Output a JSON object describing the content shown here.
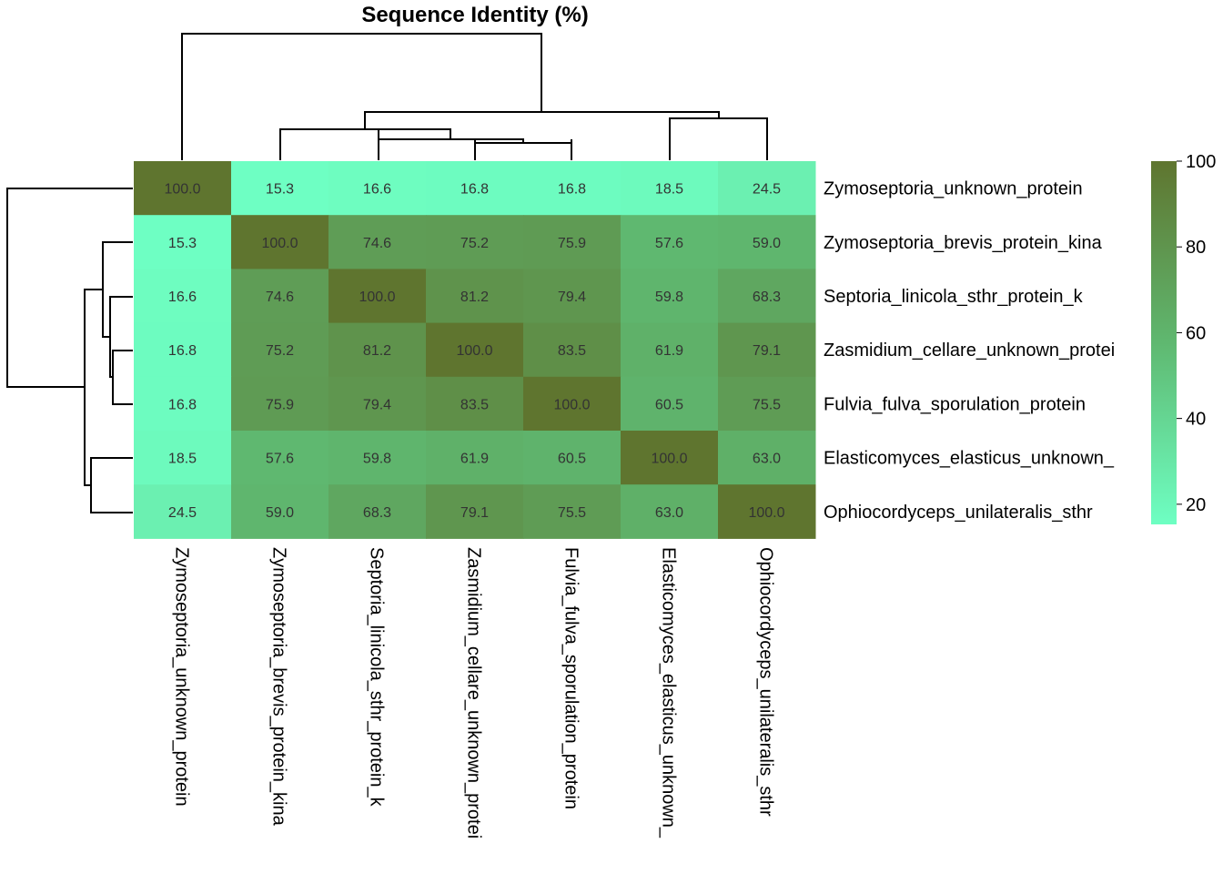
{
  "chart_data": {
    "type": "heatmap",
    "title": "Sequence Identity (%)",
    "rows": [
      "Zymoseptoria_unknown_protein",
      "Zymoseptoria_brevis_protein_kina",
      "Septoria_linicola_sthr_protein_k",
      "Zasmidium_cellare_unknown_protei",
      "Fulvia_fulva_sporulation_protein",
      "Elasticomyces_elasticus_unknown_",
      "Ophiocordyceps_unilateralis_sthr"
    ],
    "columns": [
      "Zymoseptoria_unknown_protein",
      "Zymoseptoria_brevis_protein_kina",
      "Septoria_linicola_sthr_protein_k",
      "Zasmidium_cellare_unknown_protei",
      "Fulvia_fulva_sporulation_protein",
      "Elasticomyces_elasticus_unknown_",
      "Ophiocordyceps_unilateralis_sthr"
    ],
    "values": [
      [
        100.0,
        15.3,
        16.6,
        16.8,
        16.8,
        18.5,
        24.5
      ],
      [
        15.3,
        100.0,
        74.6,
        75.2,
        75.9,
        57.6,
        59.0
      ],
      [
        16.6,
        74.6,
        100.0,
        81.2,
        79.4,
        59.8,
        68.3
      ],
      [
        16.8,
        75.2,
        81.2,
        100.0,
        83.5,
        61.9,
        79.1
      ],
      [
        16.8,
        75.9,
        79.4,
        83.5,
        100.0,
        60.5,
        75.5
      ],
      [
        18.5,
        57.6,
        59.8,
        61.9,
        60.5,
        100.0,
        63.0
      ],
      [
        24.5,
        59.0,
        68.3,
        79.1,
        75.5,
        63.0,
        100.0
      ]
    ],
    "color_range": [
      15.3,
      100.0
    ],
    "colors": {
      "low": "#6effc3",
      "mid": "#5fb870",
      "high": "#5f752f"
    },
    "legend": {
      "ticks": [
        20,
        40,
        60,
        80,
        100
      ],
      "placement": "right"
    },
    "dendrogram": {
      "rows": true,
      "columns": true
    }
  }
}
